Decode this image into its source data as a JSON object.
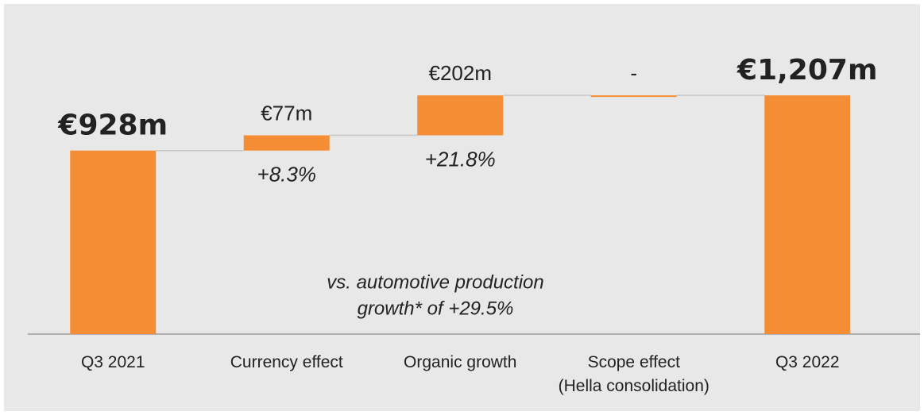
{
  "chart_data": {
    "type": "waterfall",
    "categories": [
      "Q3 2021",
      "Currency effect",
      "Organic growth",
      "Scope effect\n(Hella consolidation)",
      "Q3 2022"
    ],
    "values": [
      928,
      77,
      202,
      0,
      1207
    ],
    "value_labels": [
      "€928m",
      "€77m",
      "€202m",
      "-",
      "€1,207m"
    ],
    "bar_kinds": [
      "total",
      "delta",
      "delta",
      "delta",
      "total"
    ],
    "growth_labels": [
      null,
      "+8.3%",
      "+21.8%",
      null,
      null
    ],
    "annotation": [
      "vs. automotive production",
      "growth* of +29.5%"
    ],
    "color": "#f58d35",
    "ylim": [
      0,
      1300
    ]
  }
}
